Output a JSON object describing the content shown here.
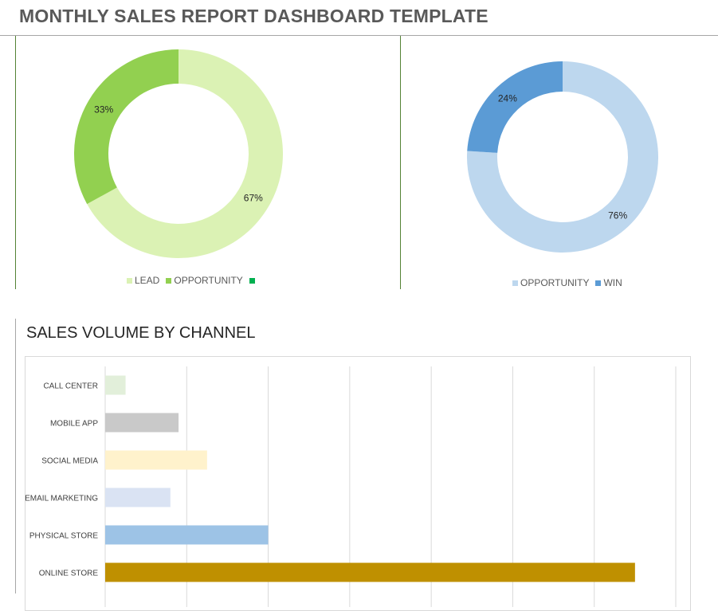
{
  "page": {
    "title": "MONTHLY SALES REPORT DASHBOARD TEMPLATE"
  },
  "colors": {
    "title_text": "#595959",
    "rule": "#a6a6a6",
    "panel_divider": "#548235",
    "bar_panel_border": "#d9d9d9",
    "gridline": "#d9d9d9"
  },
  "chart_data": [
    {
      "type": "pie",
      "donut": true,
      "title": "",
      "slices": [
        {
          "name": "LEAD",
          "value": 67,
          "label": "67%",
          "color": "#dbf2b4"
        },
        {
          "name": "OPPORTUNITY",
          "value": 33,
          "label": "33%",
          "color": "#92d050"
        }
      ],
      "legend": {
        "placement": "bottom",
        "entries": [
          {
            "name": "LEAD",
            "color": "#dbf2b4"
          },
          {
            "name": "OPPORTUNITY",
            "color": "#92d050"
          },
          {
            "name": "",
            "color": "#00b050"
          }
        ]
      }
    },
    {
      "type": "pie",
      "donut": true,
      "title": "",
      "slices": [
        {
          "name": "OPPORTUNITY",
          "value": 76,
          "label": "76%",
          "color": "#bdd7ee"
        },
        {
          "name": "WIN",
          "value": 24,
          "label": "24%",
          "color": "#5b9bd5"
        }
      ],
      "legend": {
        "placement": "bottom",
        "entries": [
          {
            "name": "OPPORTUNITY",
            "color": "#bdd7ee"
          },
          {
            "name": "WIN",
            "color": "#5b9bd5"
          }
        ]
      }
    },
    {
      "type": "bar",
      "orientation": "horizontal",
      "title": "SALES VOLUME BY CHANNEL",
      "categories": [
        "CALL CENTER",
        "MOBILE APP",
        "SOCIAL MEDIA",
        "EMAIL MARKETING",
        "PHYSICAL STORE",
        "ONLINE STORE"
      ],
      "values": [
        2.5,
        9,
        12.5,
        8,
        20,
        65
      ],
      "colors": [
        "#e2efda",
        "#c9c9c9",
        "#fff2cc",
        "#dae3f3",
        "#9dc3e6",
        "#bf9000"
      ],
      "xlim": [
        0,
        70
      ],
      "x_gridlines": [
        0,
        10,
        20,
        30,
        40,
        50,
        60,
        70
      ],
      "grid": true,
      "xlabel": "",
      "ylabel": ""
    }
  ]
}
